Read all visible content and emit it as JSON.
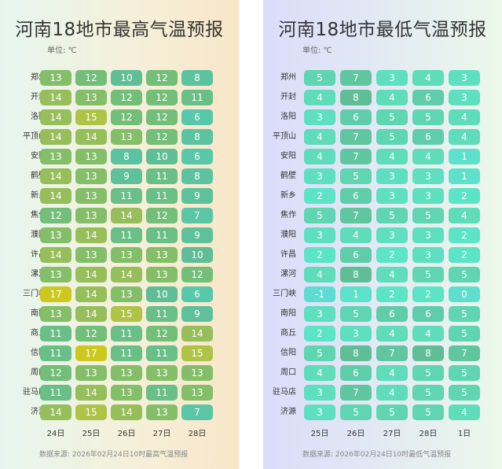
{
  "chart_data": [
    {
      "type": "heatmap",
      "title": "河南18地市最高气温预报",
      "unit": "单位: ℃",
      "source": "数据来源: 2026年02月24日10时最高气温预报",
      "rows": [
        "郑州",
        "开封",
        "洛阳",
        "平顶山",
        "安阳",
        "鹤壁",
        "新乡",
        "焦作",
        "濮阳",
        "许昌",
        "漯河",
        "三门峡",
        "南阳",
        "商丘",
        "信阳",
        "周口",
        "驻马店",
        "济源"
      ],
      "columns": [
        "24日",
        "25日",
        "26日",
        "27日",
        "28日"
      ],
      "values": [
        [
          13,
          12,
          10,
          12,
          8
        ],
        [
          14,
          13,
          12,
          12,
          11
        ],
        [
          14,
          15,
          12,
          12,
          6
        ],
        [
          14,
          14,
          13,
          12,
          8
        ],
        [
          13,
          13,
          8,
          10,
          6
        ],
        [
          14,
          13,
          9,
          11,
          8
        ],
        [
          14,
          13,
          11,
          11,
          9
        ],
        [
          12,
          13,
          14,
          12,
          7
        ],
        [
          13,
          14,
          11,
          11,
          9
        ],
        [
          14,
          13,
          13,
          13,
          10
        ],
        [
          13,
          14,
          14,
          13,
          12
        ],
        [
          17,
          14,
          13,
          10,
          6
        ],
        [
          13,
          14,
          15,
          11,
          9
        ],
        [
          11,
          12,
          11,
          12,
          14
        ],
        [
          11,
          17,
          11,
          11,
          15
        ],
        [
          12,
          13,
          13,
          13,
          13
        ],
        [
          11,
          14,
          13,
          11,
          13
        ],
        [
          14,
          15,
          14,
          13,
          7
        ]
      ]
    },
    {
      "type": "heatmap",
      "title": "河南18地市最低气温预报",
      "unit": "单位: ℃",
      "source": "数据来源: 2026年02月24日10时最低气温预报",
      "rows": [
        "郑州",
        "开封",
        "洛阳",
        "平顶山",
        "安阳",
        "鹤壁",
        "新乡",
        "焦作",
        "濮阳",
        "许昌",
        "漯河",
        "三门峡",
        "南阳",
        "商丘",
        "信阳",
        "周口",
        "驻马店",
        "济源"
      ],
      "columns": [
        "25日",
        "26日",
        "27日",
        "28日",
        "1日"
      ],
      "values": [
        [
          5,
          7,
          3,
          4,
          3
        ],
        [
          4,
          8,
          4,
          6,
          3
        ],
        [
          3,
          6,
          5,
          5,
          4
        ],
        [
          4,
          7,
          5,
          6,
          4
        ],
        [
          4,
          7,
          4,
          4,
          1
        ],
        [
          3,
          5,
          3,
          3,
          1
        ],
        [
          2,
          6,
          3,
          3,
          2
        ],
        [
          5,
          7,
          5,
          5,
          4
        ],
        [
          3,
          4,
          3,
          3,
          2
        ],
        [
          2,
          6,
          2,
          3,
          2
        ],
        [
          4,
          8,
          4,
          5,
          5
        ],
        [
          -1,
          1,
          2,
          2,
          0
        ],
        [
          3,
          5,
          6,
          6,
          5
        ],
        [
          2,
          3,
          4,
          4,
          5
        ],
        [
          5,
          8,
          7,
          8,
          7
        ],
        [
          4,
          6,
          4,
          5,
          5
        ],
        [
          3,
          7,
          4,
          5,
          5
        ],
        [
          3,
          5,
          5,
          5,
          4
        ]
      ]
    }
  ]
}
